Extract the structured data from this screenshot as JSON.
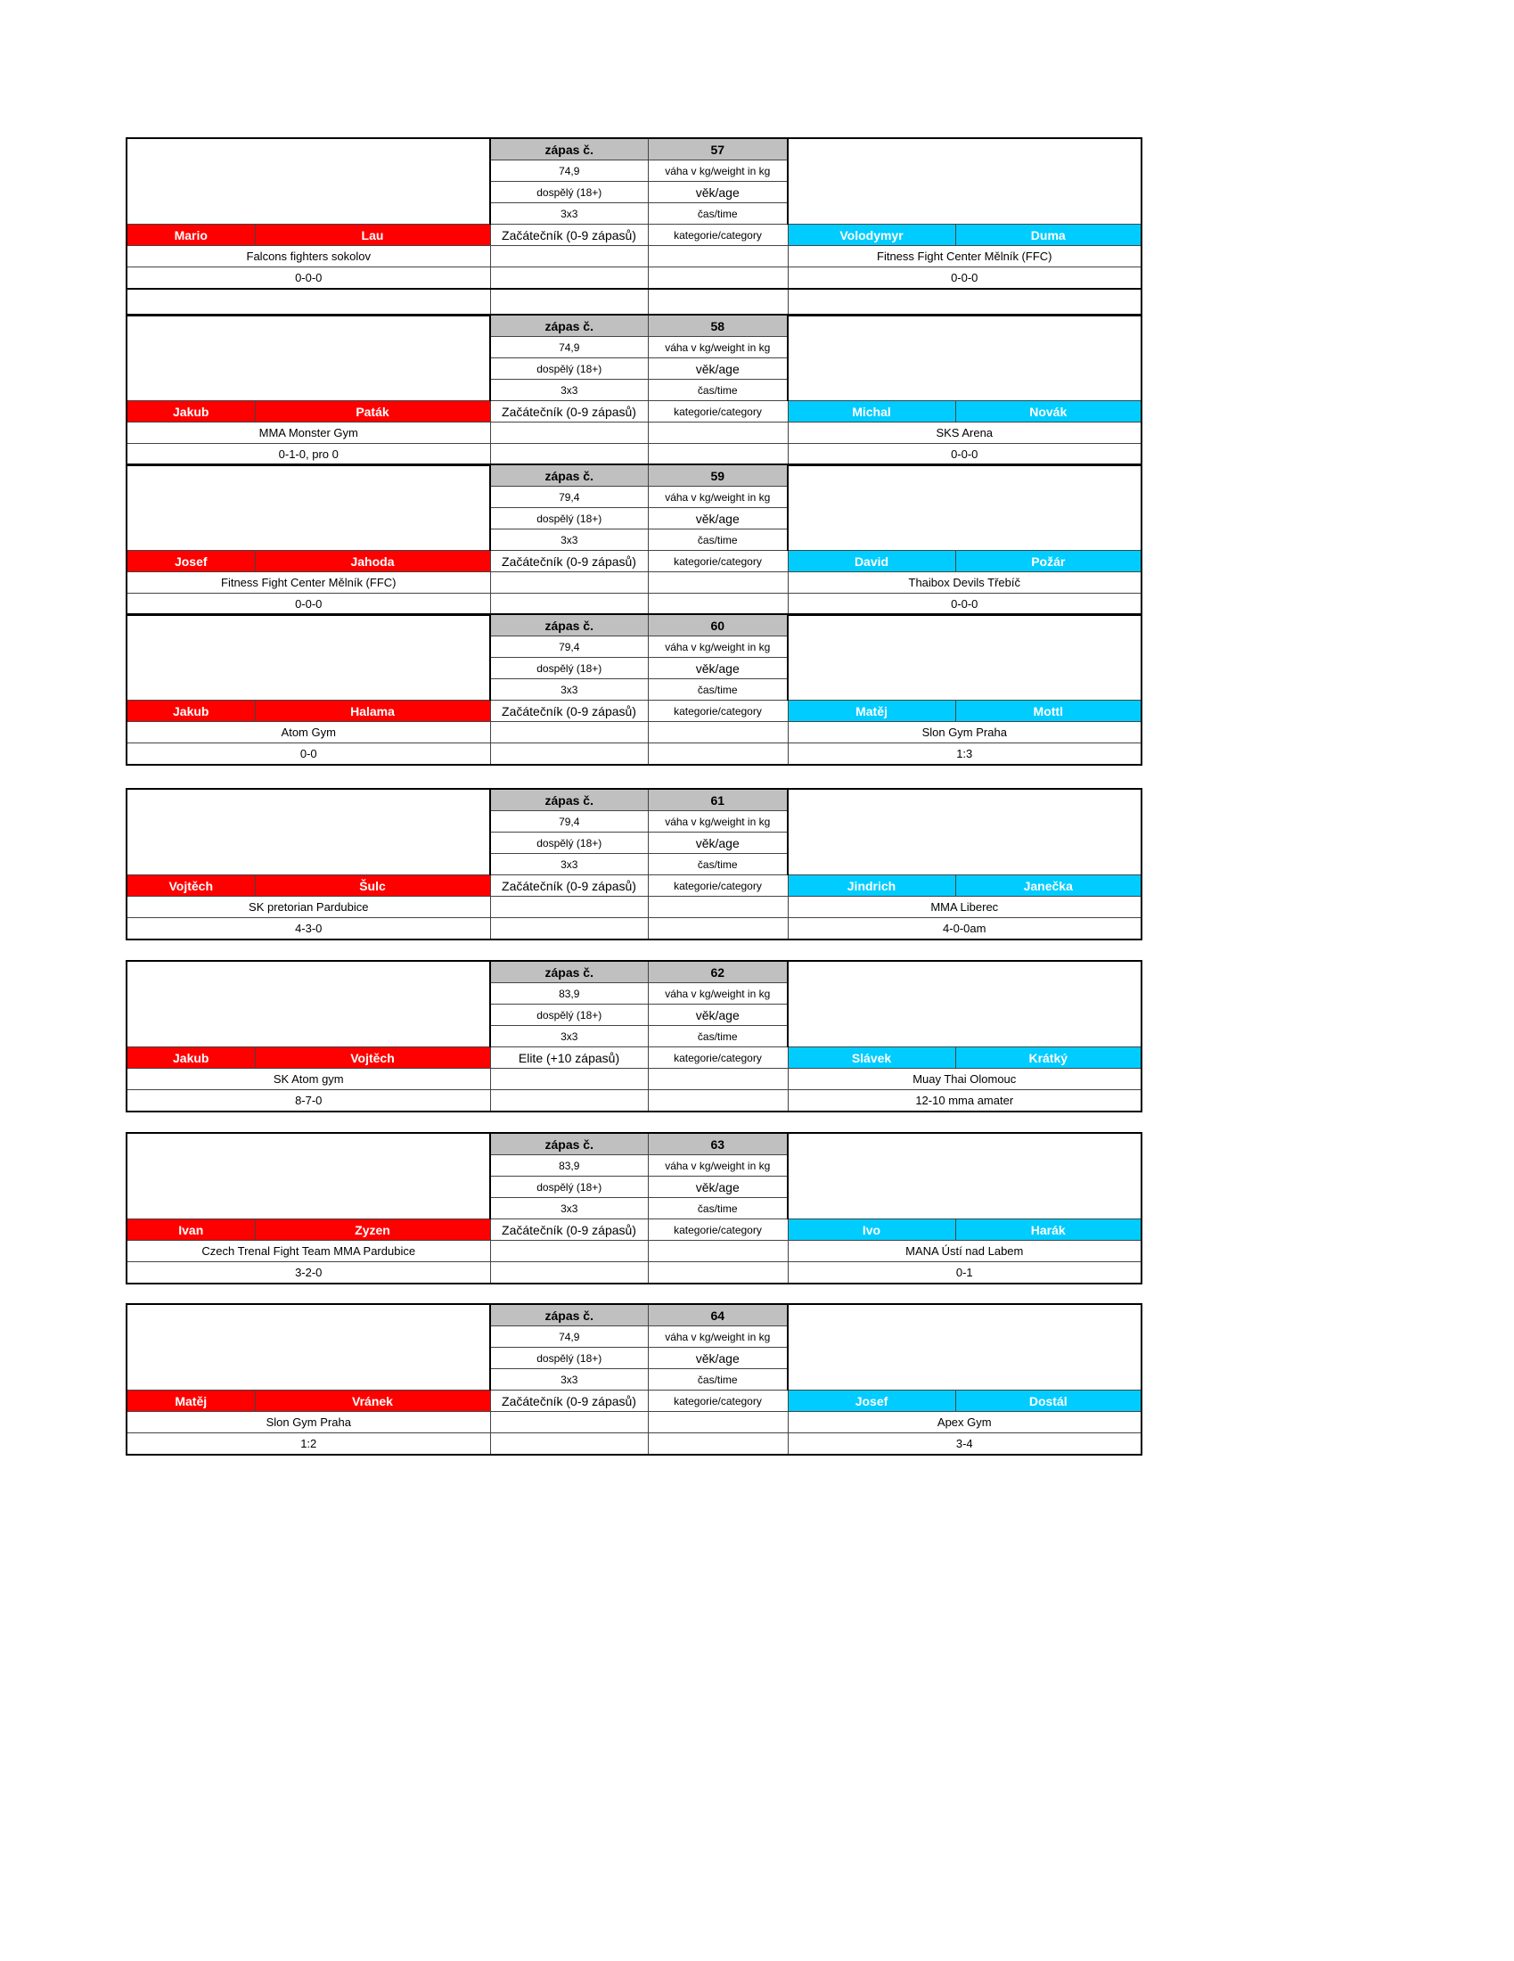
{
  "labels": {
    "match_no": "zápas č.",
    "weight": "váha v kg/weight in kg",
    "age": "věk/age",
    "time": "čas/time",
    "category": "kategorie/category"
  },
  "colors": {
    "red_corner": "#ff0000",
    "blue_corner": "#00ccff",
    "header": "#c0c0c0"
  },
  "matches": [
    {
      "no": "57",
      "weight": "74,9",
      "age": "dospělý (18+)",
      "time": "3x3",
      "category": "Začátečník (0-9 zápasů)",
      "red": {
        "first": "Mario",
        "last": "Lau",
        "club": "Falcons fighters sokolov",
        "record": "0-0-0"
      },
      "blue": {
        "first": "Volodymyr",
        "last": "Duma",
        "club": "Fitness Fight Center Mělník (FFC)",
        "record": "0-0-0"
      }
    },
    {
      "no": "58",
      "weight": "74,9",
      "age": "dospělý (18+)",
      "time": "3x3",
      "category": "Začátečník (0-9 zápasů)",
      "red": {
        "first": "Jakub",
        "last": "Paták",
        "club": "MMA Monster Gym",
        "record": "0-1-0, pro 0"
      },
      "blue": {
        "first": "Michal",
        "last": "Novák",
        "club": "SKS Arena",
        "record": "0-0-0"
      }
    },
    {
      "no": "59",
      "weight": "79,4",
      "age": "dospělý (18+)",
      "time": "3x3",
      "category": "Začátečník (0-9 zápasů)",
      "red": {
        "first": "Josef",
        "last": "Jahoda",
        "club": "Fitness Fight Center Mělník (FFC)",
        "record": "0-0-0"
      },
      "blue": {
        "first": "David",
        "last": "Požár",
        "club": "Thaibox Devils Třebíč",
        "record": "0-0-0"
      }
    },
    {
      "no": "60",
      "weight": "79,4",
      "age": "dospělý (18+)",
      "time": "3x3",
      "category": "Začátečník (0-9 zápasů)",
      "red": {
        "first": "Jakub",
        "last": "Halama",
        "club": "Atom Gym",
        "record": "0-0"
      },
      "blue": {
        "first": "Matěj",
        "last": "Mottl",
        "club": "Slon Gym Praha",
        "record": "1:3"
      }
    },
    {
      "no": "61",
      "weight": "79,4",
      "age": "dospělý (18+)",
      "time": "3x3",
      "category": "Začátečník (0-9 zápasů)",
      "red": {
        "first": "Vojtěch",
        "last": "Šulc",
        "club": "SK pretorian Pardubice",
        "record": "4-3-0"
      },
      "blue": {
        "first": "Jindrich",
        "last": "Janečka",
        "club": "MMA Liberec",
        "record": "4-0-0am"
      }
    },
    {
      "no": "62",
      "weight": "83,9",
      "age": "dospělý (18+)",
      "time": "3x3",
      "category": "Elite (+10 zápasů)",
      "red": {
        "first": "Jakub",
        "last": "Vojtěch",
        "club": "SK Atom gym",
        "record": "8-7-0"
      },
      "blue": {
        "first": "Slávek",
        "last": "Krátký",
        "club": "Muay Thai Olomouc",
        "record": "12-10 mma amater"
      }
    },
    {
      "no": "63",
      "weight": "83,9",
      "age": "dospělý (18+)",
      "time": "3x3",
      "category": "Začátečník (0-9 zápasů)",
      "red": {
        "first": "Ivan",
        "last": "Zyzen",
        "club": "Czech Trenal Fight Team MMA Pardubice",
        "record": "3-2-0"
      },
      "blue": {
        "first": "Ivo",
        "last": "Harák",
        "club": "MANA Ústí nad Labem",
        "record": "0-1"
      }
    },
    {
      "no": "64",
      "weight": "74,9",
      "age": "dospělý (18+)",
      "time": "3x3",
      "category": "Začátečník (0-9 zápasů)",
      "red": {
        "first": "Matěj",
        "last": "Vránek",
        "club": "Slon Gym Praha",
        "record": "1:2"
      },
      "blue": {
        "first": "Josef",
        "last": "Dostál",
        "club": "Apex Gym",
        "record": "3-4"
      }
    }
  ]
}
